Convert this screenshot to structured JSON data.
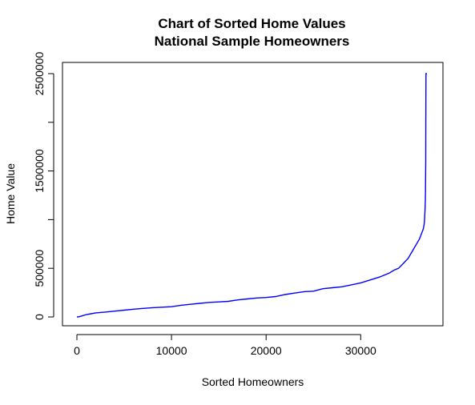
{
  "chart_data": {
    "type": "line",
    "title": "Chart of Sorted Home Values",
    "subtitle": "National Sample Homeowners",
    "xlabel": "Sorted Homeowners",
    "ylabel": "Home Value",
    "xlim": [
      0,
      37000
    ],
    "ylim": [
      0,
      2500000
    ],
    "x_ticks": [
      0,
      10000,
      20000,
      30000
    ],
    "x_tick_labels": [
      "0",
      "10000",
      "20000",
      "30000"
    ],
    "y_ticks": [
      0,
      500000,
      1000000,
      1500000,
      2000000,
      2500000
    ],
    "y_tick_labels": [
      "0",
      "500000",
      "",
      "1500000",
      "",
      "2500000"
    ],
    "grid": false,
    "legend": "none",
    "line_color": "#0000ff",
    "series": [
      {
        "x": [
          0,
          200,
          500,
          1000,
          1500,
          2000,
          3000,
          4000,
          5000,
          6000,
          7000,
          8000,
          9000,
          10000,
          11000,
          12000,
          13000,
          14000,
          15000,
          16000,
          17000,
          18000,
          19000,
          20000,
          21000,
          22000,
          23000,
          24000,
          25000,
          26000,
          27000,
          28000,
          29000,
          30000,
          31000,
          32000,
          33000,
          33500,
          34000,
          34500,
          35000,
          35300,
          35600,
          35900,
          36200,
          36400,
          36600,
          36700,
          36750,
          36800,
          36830,
          36850,
          36870,
          36880,
          36900,
          37000
        ],
        "values": [
          0,
          2000,
          10000,
          25000,
          33000,
          42000,
          50000,
          60000,
          70000,
          80000,
          88000,
          95000,
          100000,
          105000,
          120000,
          130000,
          140000,
          150000,
          155000,
          160000,
          175000,
          185000,
          195000,
          200000,
          210000,
          230000,
          245000,
          260000,
          265000,
          290000,
          300000,
          310000,
          330000,
          350000,
          380000,
          410000,
          450000,
          480000,
          500000,
          550000,
          600000,
          650000,
          700000,
          750000,
          800000,
          850000,
          900000,
          950000,
          1000000,
          1100000,
          1200000,
          1300000,
          1600000,
          2000000,
          2500000,
          2500000
        ]
      }
    ]
  }
}
